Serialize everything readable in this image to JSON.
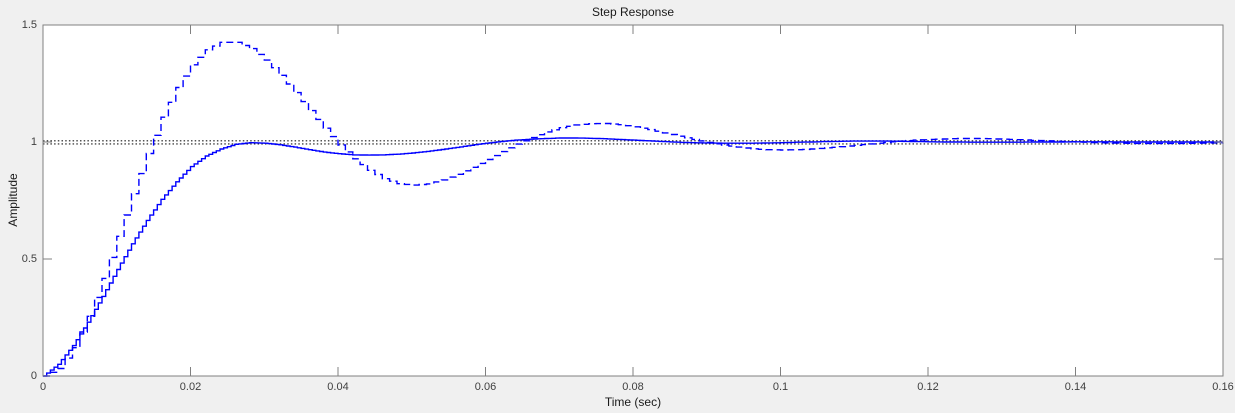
{
  "figure": {
    "background": "#f0f0f0",
    "plot_background": "#ffffff",
    "axis_color": "#808080",
    "tick_text_color": "#404040",
    "label_text_color": "#1a1a1a"
  },
  "chart_data": {
    "type": "line",
    "title": "Step Response",
    "xlabel": "Time (sec)",
    "ylabel": "Amplitude",
    "xlim": [
      0,
      0.16
    ],
    "ylim": [
      0,
      1.5
    ],
    "xticks": [
      0,
      0.02,
      0.04,
      0.06,
      0.08,
      0.1,
      0.12,
      0.14,
      0.16
    ],
    "xtick_labels": [
      "0",
      "0.02",
      "0.04",
      "0.06",
      "0.08",
      "0.1",
      "0.12",
      "0.14",
      "0.16"
    ],
    "yticks": [
      0,
      0.5,
      1,
      1.5
    ],
    "ytick_labels": [
      "0",
      "0.5",
      "1",
      "1.5"
    ],
    "grid": false,
    "legend": null,
    "reference_lines": {
      "meaning": "steady-state final value (amplitude = 1) for each response",
      "values": [
        1.005,
        0.992
      ],
      "style": "dotted",
      "color": "#1a1a1a"
    },
    "t_step_table": 0.002,
    "series": [
      {
        "name": "solid-staircase-response",
        "line_style": "solid",
        "render": "stairs",
        "color": "#0000ff",
        "sample_time": 0.0005,
        "peak": {
          "time": 0.07,
          "value": 1.017
        },
        "values": [
          0.0,
          0.05,
          0.13,
          0.23,
          0.34,
          0.455,
          0.565,
          0.665,
          0.755,
          0.83,
          0.895,
          0.94,
          0.97,
          0.99,
          0.997,
          0.995,
          0.988,
          0.978,
          0.967,
          0.957,
          0.95,
          0.945,
          0.944,
          0.945,
          0.948,
          0.953,
          0.96,
          0.968,
          0.977,
          0.986,
          0.995,
          1.002,
          1.008,
          1.012,
          1.015,
          1.017,
          1.017,
          1.016,
          1.014,
          1.011,
          1.008,
          1.005,
          1.002,
          0.999,
          0.997,
          0.996,
          0.995,
          0.995,
          0.995,
          0.996,
          0.997,
          0.999,
          1.0,
          1.002,
          1.003,
          1.004,
          1.004,
          1.004,
          1.003,
          1.002,
          1.001,
          1.0,
          1.0,
          0.999,
          0.999,
          0.999,
          0.999,
          1.0,
          1.0,
          1.0,
          1.001,
          1.001,
          1.001,
          1.0,
          1.0,
          1.0,
          1.0,
          1.0,
          1.0,
          1.0,
          1.0
        ]
      },
      {
        "name": "dashed-staircase-response",
        "line_style": "dashed",
        "render": "stairs",
        "color": "#0000ff",
        "sample_time": 0.001,
        "peak": {
          "time": 0.025,
          "value": 1.43
        },
        "values": [
          0.0,
          0.032,
          0.121,
          0.255,
          0.417,
          0.597,
          0.779,
          0.951,
          1.106,
          1.233,
          1.33,
          1.394,
          1.426,
          1.426,
          1.399,
          1.35,
          1.285,
          1.211,
          1.134,
          1.059,
          0.987,
          0.928,
          0.879,
          0.843,
          0.822,
          0.816,
          0.821,
          0.838,
          0.862,
          0.892,
          0.925,
          0.959,
          0.991,
          1.019,
          1.043,
          1.061,
          1.073,
          1.078,
          1.079,
          1.074,
          1.065,
          1.053,
          1.039,
          1.025,
          1.011,
          0.998,
          0.987,
          0.978,
          0.971,
          0.967,
          0.966,
          0.967,
          0.97,
          0.975,
          0.98,
          0.986,
          0.992,
          0.998,
          1.004,
          1.008,
          1.011,
          1.013,
          1.015,
          1.015,
          1.014,
          1.012,
          1.01,
          1.007,
          1.005,
          1.002,
          1.0,
          0.998,
          0.996,
          0.995,
          0.994,
          0.994,
          0.994,
          0.994,
          0.995,
          0.996,
          0.997
        ]
      }
    ]
  }
}
